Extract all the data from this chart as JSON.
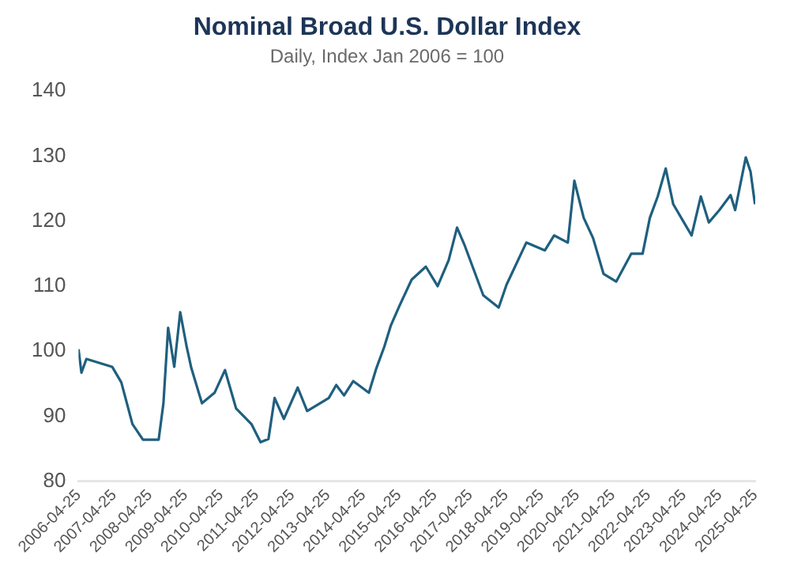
{
  "chart_data": {
    "type": "line",
    "title": "Nominal Broad U.S. Dollar Index",
    "subtitle": "Daily, Index Jan 2006 = 100",
    "x": [
      "2006-04-25",
      "2006-05-25",
      "2006-07-15",
      "2007-04-05",
      "2007-07-08",
      "2007-10-30",
      "2008-02-15",
      "2008-07-25",
      "2008-09-12",
      "2008-10-30",
      "2009-01-01",
      "2009-03-03",
      "2009-05-08",
      "2009-06-25",
      "2009-10-12",
      "2010-02-18",
      "2010-06-05",
      "2010-09-27",
      "2011-03-03",
      "2011-06-05",
      "2011-08-25",
      "2011-10-27",
      "2012-01-30",
      "2012-06-20",
      "2012-09-25",
      "2013-05-05",
      "2013-07-20",
      "2013-10-08",
      "2014-01-10",
      "2014-06-20",
      "2014-09-05",
      "2014-11-25",
      "2015-02-01",
      "2015-04-30",
      "2015-09-01",
      "2016-01-25",
      "2016-05-25",
      "2016-09-15",
      "2016-12-10",
      "2017-02-28",
      "2017-09-05",
      "2018-02-10",
      "2018-05-01",
      "2018-11-20",
      "2019-05-30",
      "2019-09-01",
      "2020-01-20",
      "2020-03-27",
      "2020-07-01",
      "2020-10-05",
      "2021-01-20",
      "2021-05-30",
      "2021-11-01",
      "2022-02-25",
      "2022-05-10",
      "2022-07-30",
      "2022-10-20",
      "2023-01-05",
      "2023-04-25",
      "2023-07-12",
      "2023-10-15",
      "2024-01-05",
      "2024-04-22",
      "2024-08-15",
      "2024-10-01",
      "2025-01-18",
      "2025-03-08",
      "2025-04-22"
    ],
    "series": [
      {
        "color": "#1f5f7f",
        "values": [
          100.3,
          96.7,
          98.8,
          97.6,
          95.2,
          88.8,
          86.4,
          86.4,
          92,
          103.6,
          97.6,
          106,
          100.7,
          97.4,
          92,
          93.6,
          97.1,
          91.2,
          88.8,
          86,
          86.5,
          92.8,
          89.6,
          94.4,
          90.8,
          92.8,
          94.8,
          93.2,
          95.4,
          93.6,
          97.4,
          100.7,
          104,
          107,
          111,
          113,
          110,
          114,
          119,
          116.2,
          108.6,
          106.7,
          110.2,
          116.7,
          115.5,
          117.8,
          116.7,
          126.2,
          120.5,
          117.4,
          111.9,
          110.7,
          115,
          115,
          120.5,
          123.8,
          128.1,
          122.6,
          119.8,
          117.8,
          123.8,
          119.8,
          121.7,
          124,
          121.7,
          129.8,
          127.6,
          122.6
        ]
      }
    ],
    "xlim": [
      "2006-04-25",
      "2025-04-25"
    ],
    "xticks": [
      "2006-04-25",
      "2007-04-25",
      "2008-04-25",
      "2009-04-25",
      "2010-04-25",
      "2011-04-25",
      "2012-04-25",
      "2013-04-25",
      "2014-04-25",
      "2015-04-25",
      "2016-04-25",
      "2017-04-25",
      "2018-04-25",
      "2019-04-25",
      "2020-04-25",
      "2021-04-25",
      "2022-04-25",
      "2023-04-25",
      "2024-04-25",
      "2025-04-25"
    ],
    "ylim": [
      80,
      140
    ],
    "yticks": [
      80,
      90,
      100,
      110,
      120,
      130,
      140
    ],
    "marker": "none",
    "line_style": "solid",
    "legend": false
  }
}
